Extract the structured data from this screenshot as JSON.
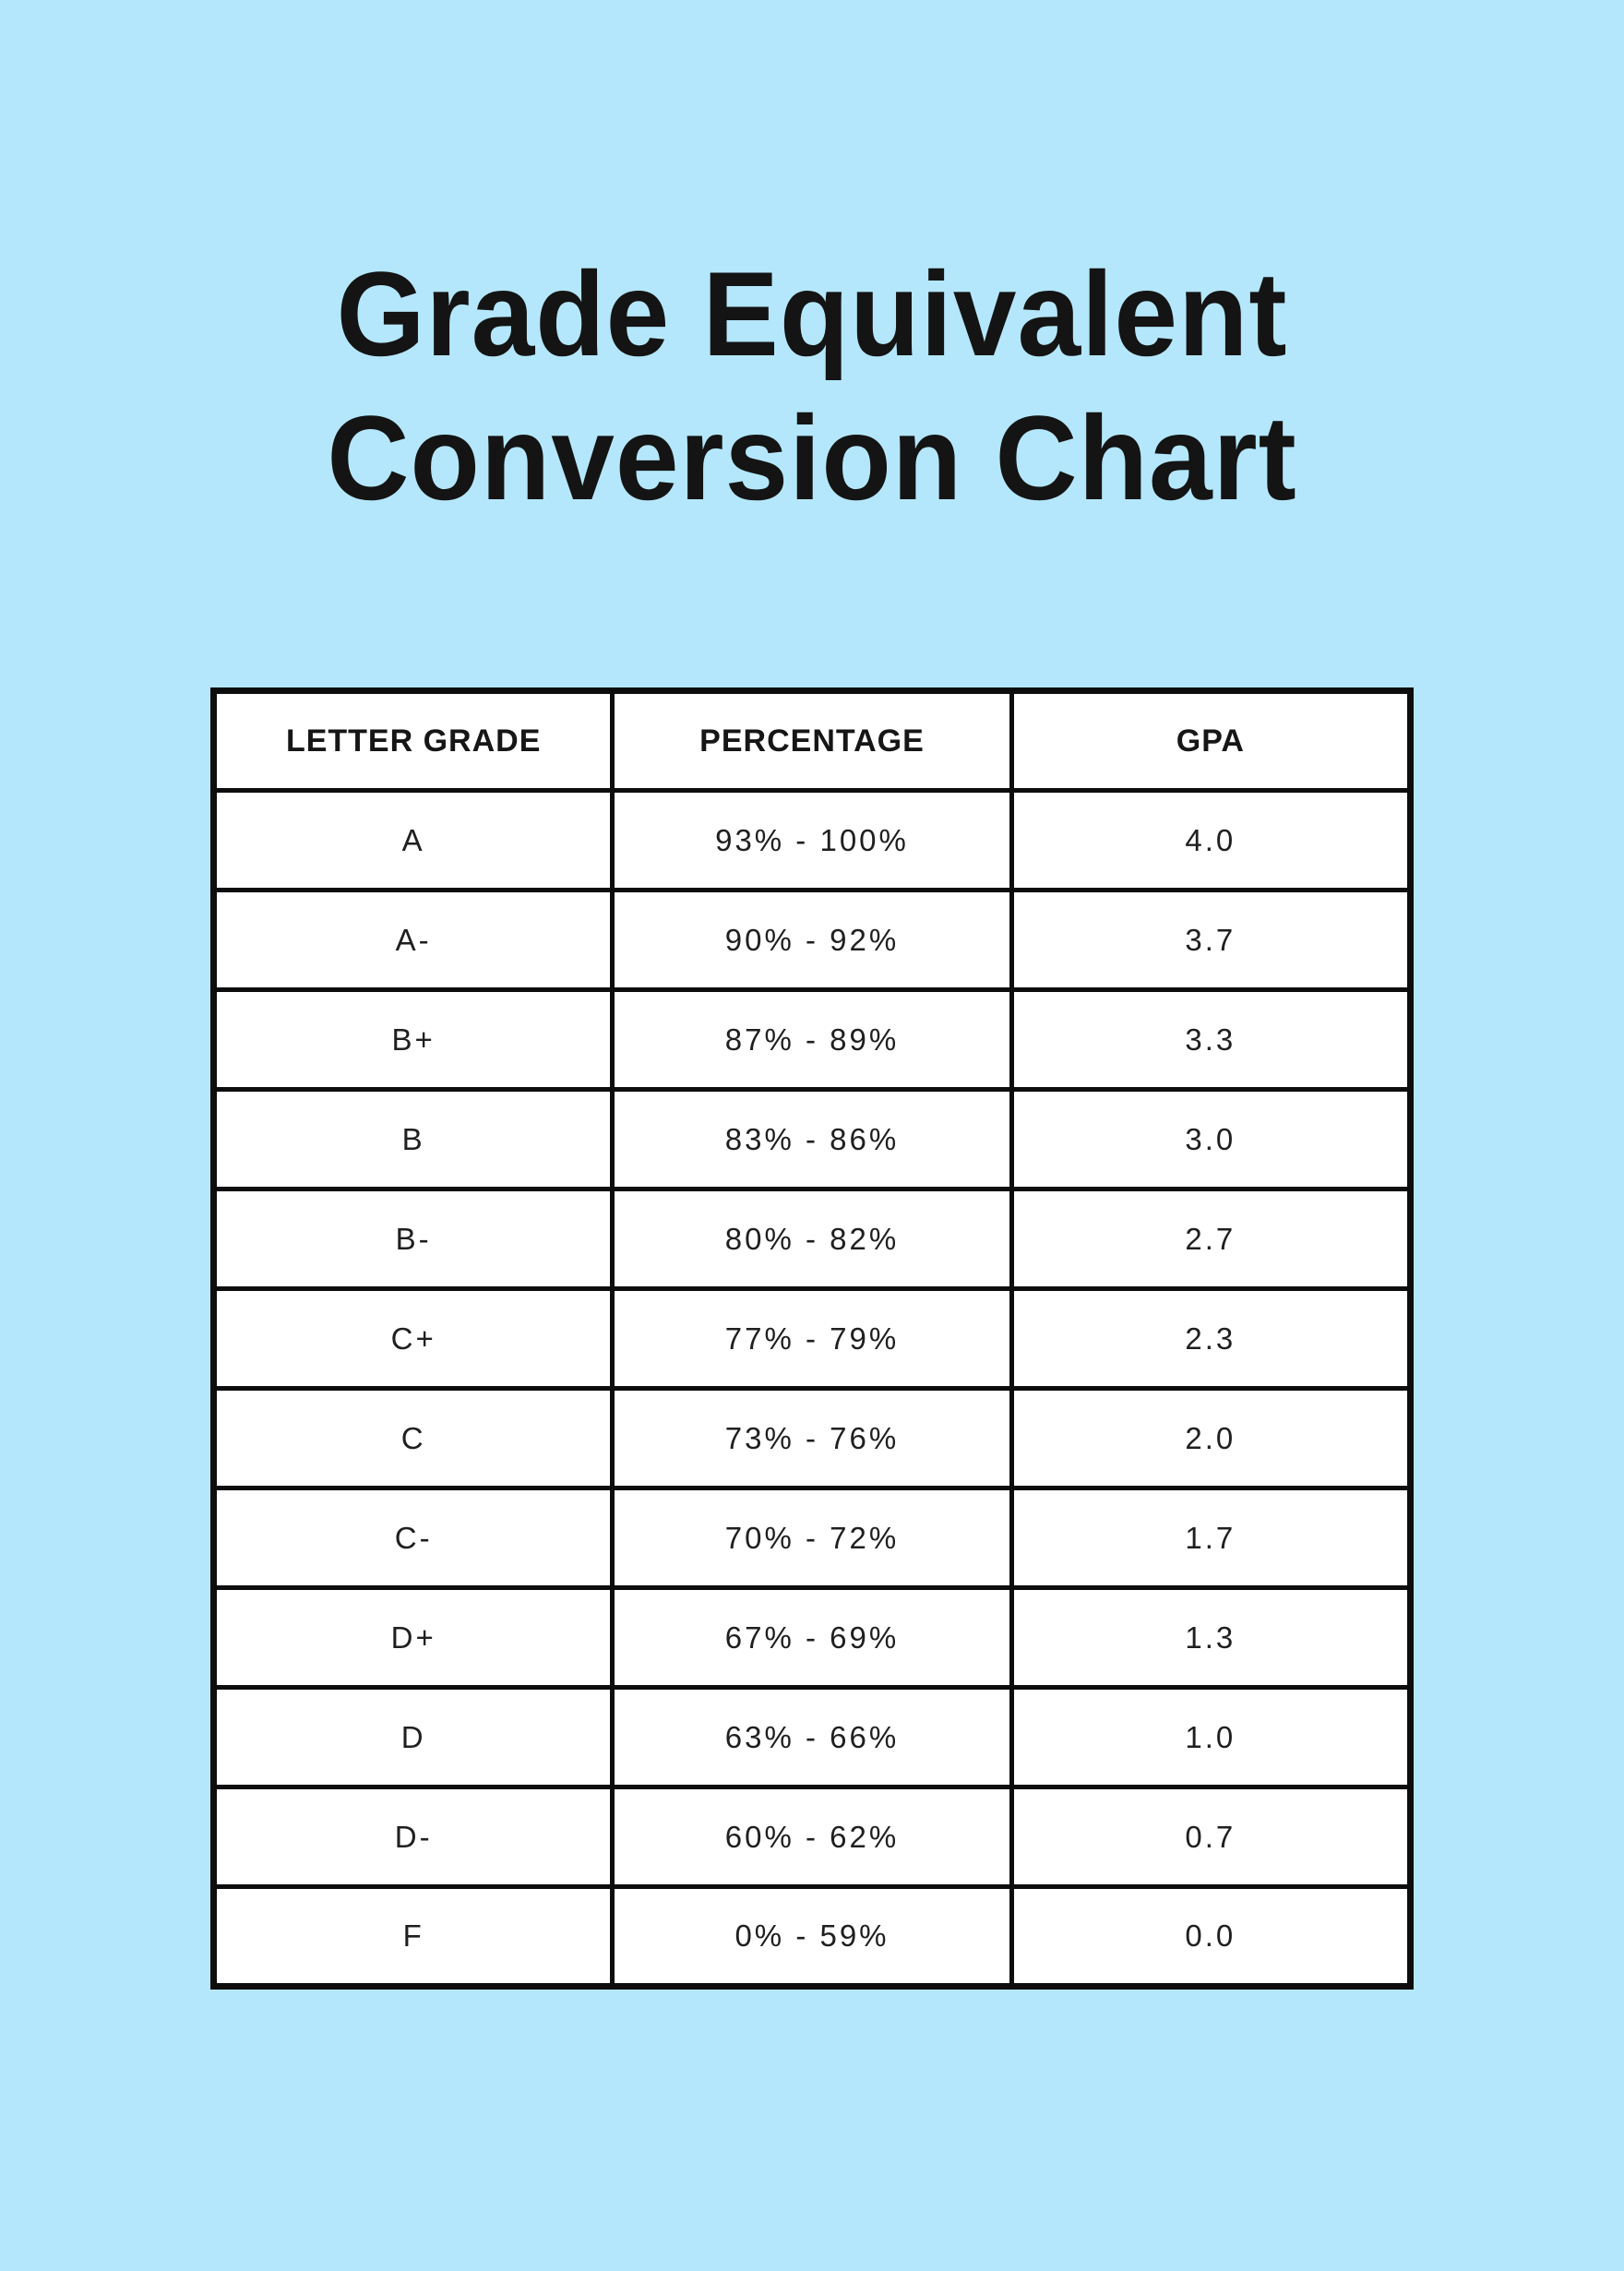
{
  "title": {
    "line1": "Grade Equivalent",
    "line2": "Conversion Chart"
  },
  "colors": {
    "background": "#B4E7FB",
    "cell_background": "#FFFFFF",
    "border": "#0D0D0D",
    "text": "#141414"
  },
  "chart_data": {
    "type": "table",
    "title": "Grade Equivalent Conversion Chart",
    "columns": [
      "LETTER GRADE",
      "PERCENTAGE",
      "GPA"
    ],
    "rows": [
      [
        "A",
        "93% - 100%",
        "4.0"
      ],
      [
        "A-",
        "90% - 92%",
        "3.7"
      ],
      [
        "B+",
        "87% - 89%",
        "3.3"
      ],
      [
        "B",
        "83% - 86%",
        "3.0"
      ],
      [
        "B-",
        "80% - 82%",
        "2.7"
      ],
      [
        "C+",
        "77% - 79%",
        "2.3"
      ],
      [
        "C",
        "73% - 76%",
        "2.0"
      ],
      [
        "C-",
        "70% - 72%",
        "1.7"
      ],
      [
        "D+",
        "67% - 69%",
        "1.3"
      ],
      [
        "D",
        "63% - 66%",
        "1.0"
      ],
      [
        "D-",
        "60% - 62%",
        "0.7"
      ],
      [
        "F",
        "0% - 59%",
        "0.0"
      ]
    ]
  }
}
